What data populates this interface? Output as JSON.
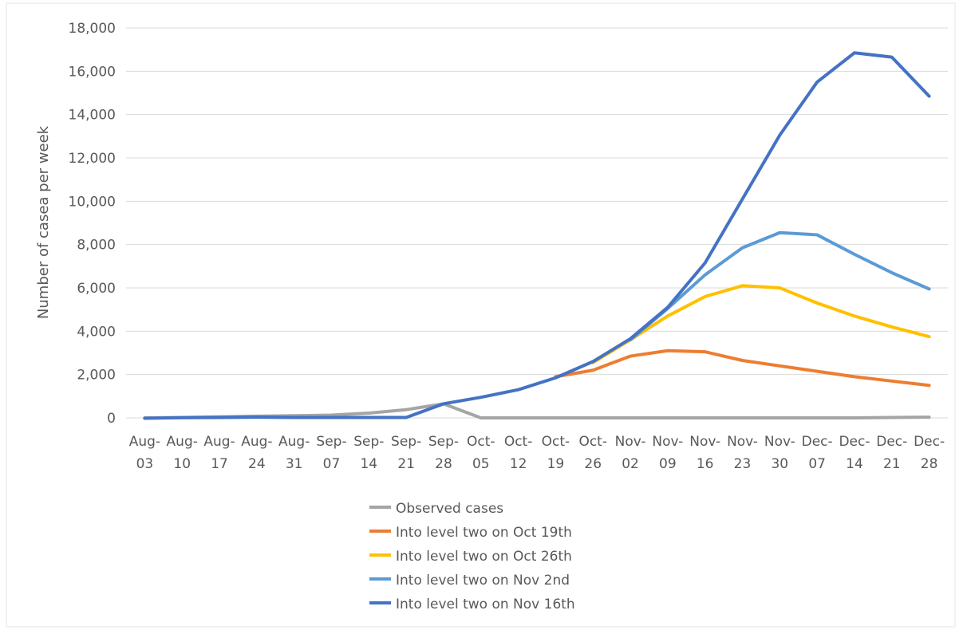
{
  "chart_data": {
    "type": "line",
    "title": "",
    "xlabel": "",
    "ylabel": "Number of casea per week",
    "ylim": [
      0,
      18000
    ],
    "yticks": [
      "0",
      "2,000",
      "4,000",
      "6,000",
      "8,000",
      "10,000",
      "12,000",
      "14,000",
      "16,000",
      "18,000"
    ],
    "grid": true,
    "legend_position": "bottom",
    "categories": [
      [
        "Aug-",
        "03"
      ],
      [
        "Aug-",
        "10"
      ],
      [
        "Aug-",
        "17"
      ],
      [
        "Aug-",
        "24"
      ],
      [
        "Aug-",
        "31"
      ],
      [
        "Sep-",
        "07"
      ],
      [
        "Sep-",
        "14"
      ],
      [
        "Sep-",
        "21"
      ],
      [
        "Sep-",
        "28"
      ],
      [
        "Oct-",
        "05"
      ],
      [
        "Oct-",
        "12"
      ],
      [
        "Oct-",
        "19"
      ],
      [
        "Oct-",
        "26"
      ],
      [
        "Nov-",
        "02"
      ],
      [
        "Nov-",
        "09"
      ],
      [
        "Nov-",
        "16"
      ],
      [
        "Nov-",
        "23"
      ],
      [
        "Nov-",
        "30"
      ],
      [
        "Dec-",
        "07"
      ],
      [
        "Dec-",
        "14"
      ],
      [
        "Dec-",
        "21"
      ],
      [
        "Dec-",
        "28"
      ]
    ],
    "series": [
      {
        "name": "Observed cases",
        "color": "#a5a5a5",
        "values": [
          0,
          20,
          50,
          80,
          100,
          130,
          220,
          380,
          650,
          0,
          0,
          0,
          0,
          0,
          0,
          0,
          0,
          0,
          0,
          0,
          20,
          30
        ]
      },
      {
        "name": "Into level two on Oct 19th",
        "color": "#ed7d31",
        "values": [
          null,
          null,
          null,
          null,
          null,
          null,
          null,
          null,
          null,
          null,
          null,
          1900,
          2200,
          2850,
          3100,
          3050,
          2650,
          2400,
          2150,
          1900,
          1700,
          1500
        ]
      },
      {
        "name": "Into level two on Oct 26th",
        "color": "#ffc000",
        "values": [
          null,
          null,
          null,
          null,
          null,
          null,
          null,
          null,
          null,
          null,
          null,
          null,
          2550,
          3600,
          4700,
          5600,
          6100,
          6000,
          5300,
          4700,
          4200,
          3750
        ]
      },
      {
        "name": "Into level two on Nov 2nd",
        "color": "#5b9bd5",
        "values": [
          null,
          null,
          null,
          null,
          null,
          null,
          null,
          null,
          null,
          null,
          null,
          null,
          null,
          3600,
          5050,
          6600,
          7850,
          8550,
          8450,
          7550,
          6700,
          5950
        ]
      },
      {
        "name": "Into level two on Nov 16th",
        "color": "#4472c4",
        "values": [
          -20,
          10,
          20,
          30,
          20,
          20,
          20,
          20,
          650,
          950,
          1300,
          1850,
          2600,
          3650,
          5100,
          7150,
          10100,
          13050,
          15500,
          16850,
          16650,
          14850
        ]
      }
    ]
  }
}
